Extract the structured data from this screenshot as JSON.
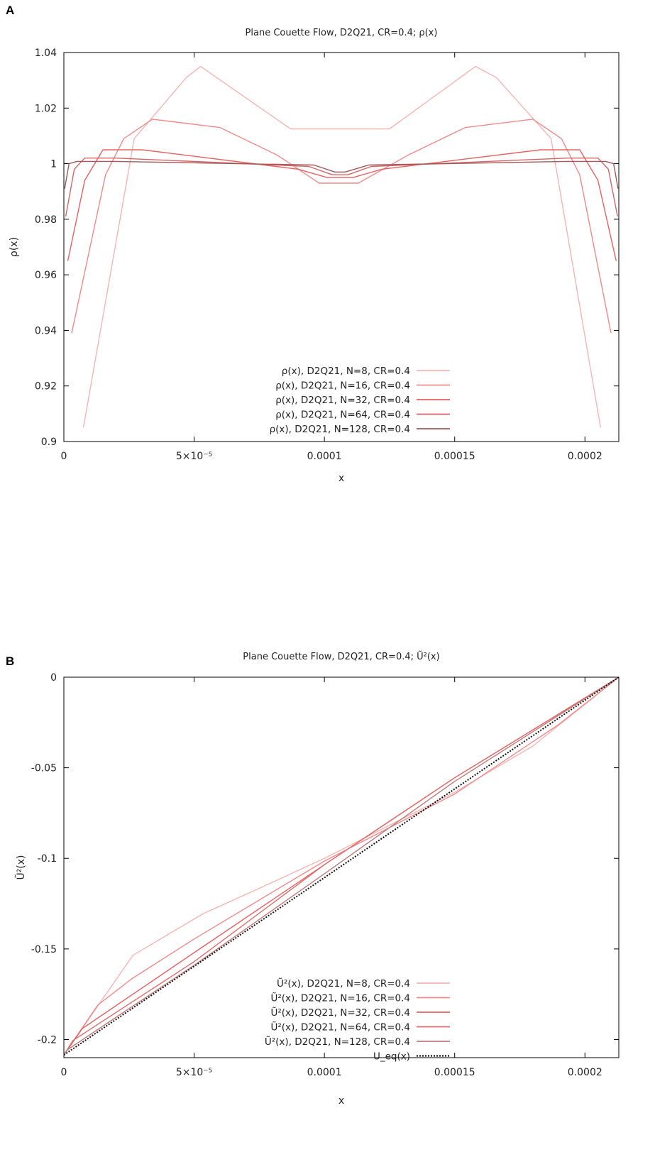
{
  "chart_data": [
    {
      "panel": "A",
      "type": "line",
      "title": "Plane Couette Flow, D2Q21, CR=0.4; ρ(x)",
      "xlabel": "x",
      "ylabel": "ρ(x)",
      "xlim": [
        0,
        0.000213
      ],
      "ylim": [
        0.9,
        1.04
      ],
      "xticks": [
        {
          "value": 0,
          "label": "0"
        },
        {
          "value": 5e-05,
          "label": "5×10⁻⁵"
        },
        {
          "value": 0.0001,
          "label": "0.0001"
        },
        {
          "value": 0.00015,
          "label": "0.00015"
        },
        {
          "value": 0.0002,
          "label": "0.0002"
        }
      ],
      "yticks": [
        {
          "value": 0.9,
          "label": "0.9"
        },
        {
          "value": 0.92,
          "label": "0.92"
        },
        {
          "value": 0.94,
          "label": "0.94"
        },
        {
          "value": 0.96,
          "label": "0.96"
        },
        {
          "value": 0.98,
          "label": "0.98"
        },
        {
          "value": 1.0,
          "label": "1"
        },
        {
          "value": 1.02,
          "label": "1.02"
        },
        {
          "value": 1.04,
          "label": "1.04"
        }
      ],
      "legend_position": "bottom-center",
      "series": [
        {
          "name": "ρ(x), D2Q21, N=8, CR=0.4",
          "color": "#f6b4b4",
          "dashed": false,
          "points": [
            [
              7.5e-06,
              0.905
            ],
            [
              2.7e-05,
              1.009
            ],
            [
              4.7e-05,
              1.031
            ],
            [
              5.25e-05,
              1.035
            ],
            [
              8.7e-05,
              1.0125
            ],
            [
              0.000125,
              1.0125
            ],
            [
              0.000158,
              1.035
            ],
            [
              0.000166,
              1.031
            ],
            [
              0.000187,
              1.009
            ],
            [
              0.000206,
              0.905
            ]
          ]
        },
        {
          "name": "ρ(x), D2Q21, N=16, CR=0.4",
          "color": "#f08a8a",
          "dashed": false,
          "points": [
            [
              3e-06,
              0.939
            ],
            [
              1.6e-05,
              0.996
            ],
            [
              2.3e-05,
              1.009
            ],
            [
              3.4e-05,
              1.016
            ],
            [
              6e-05,
              1.013
            ],
            [
              8.2e-05,
              1.003
            ],
            [
              9.8e-05,
              0.993
            ],
            [
              0.000113,
              0.993
            ],
            [
              0.000132,
              1.003
            ],
            [
              0.000154,
              1.013
            ],
            [
              0.00018,
              1.016
            ],
            [
              0.000191,
              1.009
            ],
            [
              0.000198,
              0.996
            ],
            [
              0.00021,
              0.939
            ]
          ]
        },
        {
          "name": "ρ(x), D2Q21, N=32, CR=0.4",
          "color": "#e8605f",
          "dashed": false,
          "points": [
            [
              1.5e-06,
              0.965
            ],
            [
              8e-06,
              0.994
            ],
            [
              1.5e-05,
              1.005
            ],
            [
              3e-05,
              1.005
            ],
            [
              9e-05,
              0.998
            ],
            [
              0.000101,
              0.995
            ],
            [
              0.000111,
              0.995
            ],
            [
              0.000122,
              0.998
            ],
            [
              0.000183,
              1.005
            ],
            [
              0.000198,
              1.005
            ],
            [
              0.000205,
              0.994
            ],
            [
              0.000212,
              0.965
            ]
          ]
        },
        {
          "name": "ρ(x), D2Q21, N=64, CR=0.4",
          "color": "#d76464",
          "dashed": false,
          "points": [
            [
              7e-07,
              0.981
            ],
            [
              4e-06,
              0.998
            ],
            [
              8e-06,
              1.002
            ],
            [
              2e-05,
              1.002
            ],
            [
              9.4e-05,
              0.999
            ],
            [
              0.000103,
              0.996
            ],
            [
              0.000109,
              0.996
            ],
            [
              0.000118,
              0.999
            ],
            [
              0.000193,
              1.002
            ],
            [
              0.000205,
              1.002
            ],
            [
              0.000209,
              0.998
            ],
            [
              0.0002125,
              0.981
            ]
          ]
        },
        {
          "name": "ρ(x), D2Q21, N=128, CR=0.4",
          "color": "#a35858",
          "dashed": false,
          "points": [
            [
              3e-07,
              0.991
            ],
            [
              2e-06,
              1.0
            ],
            [
              5e-06,
              1.0008
            ],
            [
              2e-05,
              1.0008
            ],
            [
              9.6e-05,
              0.9995
            ],
            [
              0.000104,
              0.997
            ],
            [
              0.000108,
              0.997
            ],
            [
              0.000117,
              0.9995
            ],
            [
              0.000193,
              1.0008
            ],
            [
              0.000208,
              1.0008
            ],
            [
              0.000211,
              1.0
            ],
            [
              0.0002127,
              0.991
            ]
          ]
        }
      ]
    },
    {
      "panel": "B",
      "type": "line",
      "title": "Plane Couette Flow, D2Q21, CR=0.4; Ũ²(x)",
      "xlabel": "x",
      "ylabel": "Ũ²(x)",
      "xlim": [
        0,
        0.000213
      ],
      "ylim": [
        -0.21,
        0
      ],
      "xticks": [
        {
          "value": 0,
          "label": "0"
        },
        {
          "value": 5e-05,
          "label": "5×10⁻⁵"
        },
        {
          "value": 0.0001,
          "label": "0.0001"
        },
        {
          "value": 0.00015,
          "label": "0.00015"
        },
        {
          "value": 0.0002,
          "label": "0.0002"
        }
      ],
      "yticks": [
        {
          "value": -0.2,
          "label": "-0.2"
        },
        {
          "value": -0.15,
          "label": "-0.15"
        },
        {
          "value": -0.1,
          "label": "-0.1"
        },
        {
          "value": -0.05,
          "label": "-0.05"
        },
        {
          "value": 0,
          "label": "0"
        }
      ],
      "legend_position": "bottom-right",
      "series": [
        {
          "name": "Ũ²(x), D2Q21, N=8, CR=0.4",
          "color": "#f6b4b4",
          "dashed": false,
          "points": [
            [
              0,
              -0.2085
            ],
            [
              2.65e-05,
              -0.1535
            ],
            [
              5.35e-05,
              -0.1305
            ],
            [
              7.5e-05,
              -0.1165
            ],
            [
              0.0001,
              -0.1
            ],
            [
              0.00015,
              -0.0635
            ],
            [
              0.00018,
              -0.038
            ],
            [
              0.000213,
              0
            ]
          ]
        },
        {
          "name": "Ũ²(x), D2Q21, N=16, CR=0.4",
          "color": "#f08a8a",
          "dashed": false,
          "points": [
            [
              0,
              -0.2085
            ],
            [
              1.3e-05,
              -0.181
            ],
            [
              2.6e-05,
              -0.1665
            ],
            [
              5e-05,
              -0.1445
            ],
            [
              0.0001,
              -0.1015
            ],
            [
              0.00015,
              -0.0645
            ],
            [
              0.00019,
              -0.026
            ],
            [
              0.000213,
              0
            ]
          ]
        },
        {
          "name": "Ũ²(x), D2Q21, N=32, CR=0.4",
          "color": "#e8605f",
          "dashed": false,
          "points": [
            [
              0,
              -0.2085
            ],
            [
              7e-06,
              -0.194
            ],
            [
              5e-05,
              -0.152
            ],
            [
              0.0001,
              -0.1035
            ],
            [
              0.00015,
              -0.0555
            ],
            [
              0.000213,
              0
            ]
          ]
        },
        {
          "name": "Ũ²(x), D2Q21, N=64, CR=0.4",
          "color": "#e06a6a",
          "dashed": false,
          "points": [
            [
              0,
              -0.2085
            ],
            [
              3.5e-06,
              -0.2005
            ],
            [
              5e-05,
              -0.157
            ],
            [
              0.0001,
              -0.1035
            ],
            [
              0.00015,
              -0.0555
            ],
            [
              0.000213,
              0
            ]
          ]
        },
        {
          "name": "Ũ²(x), D2Q21, N=128, CR=0.4",
          "color": "#c07a7a",
          "dashed": false,
          "points": [
            [
              0,
              -0.2085
            ],
            [
              1.5e-06,
              -0.2055
            ],
            [
              5e-05,
              -0.159
            ],
            [
              0.0001,
              -0.1085
            ],
            [
              0.00015,
              -0.0575
            ],
            [
              0.000213,
              0
            ]
          ]
        },
        {
          "name": "U_eq(x)",
          "color": "#111111",
          "dashed": true,
          "points": [
            [
              0,
              -0.2085
            ],
            [
              0.000213,
              0
            ]
          ]
        }
      ]
    }
  ]
}
